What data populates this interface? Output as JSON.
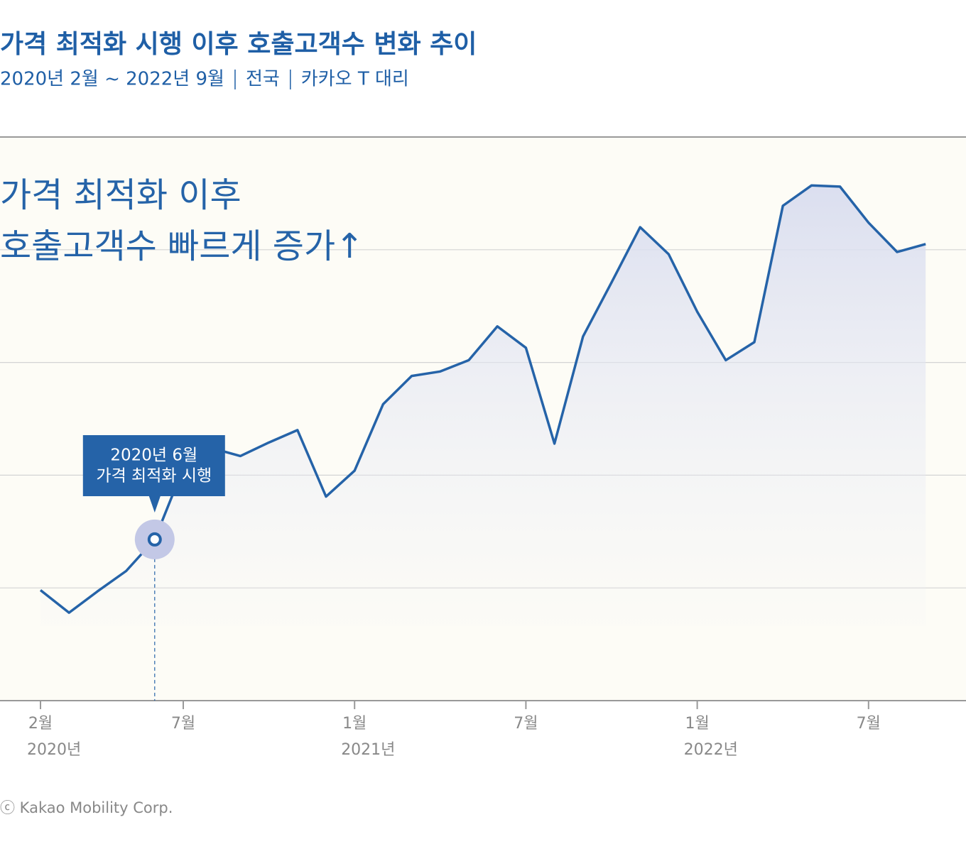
{
  "chart_data": {
    "type": "line",
    "title": "가격 최적화 시행 이후 호출고객수 변화 추이",
    "subtitle": [
      "2020년 2월 ~ 2022년 9월",
      "전국",
      "카카오 T 대리"
    ],
    "headline": [
      "가격 최적화 이후",
      "호출고객수 빠르게 증가↑"
    ],
    "categories": [
      "2월",
      null,
      null,
      null,
      null,
      "7월",
      null,
      null,
      null,
      null,
      null,
      "1월",
      null,
      null,
      null,
      null,
      null,
      "7월",
      null,
      null,
      null,
      null,
      null,
      "1월",
      null,
      null,
      null,
      null,
      null,
      "7월",
      null,
      null
    ],
    "year_labels": [
      "2020년",
      null,
      null,
      null,
      null,
      null,
      null,
      null,
      null,
      null,
      null,
      "2021년",
      null,
      null,
      null,
      null,
      null,
      null,
      null,
      null,
      null,
      null,
      null,
      "2022년",
      null,
      null,
      null,
      null,
      null,
      null,
      null,
      null
    ],
    "series": [
      {
        "color": "#2563a8",
        "values": [
          0.98,
          0.78,
          0.97,
          1.15,
          1.43,
          2.06,
          2.24,
          2.17,
          2.29,
          2.4,
          1.81,
          2.04,
          2.63,
          2.88,
          2.92,
          3.02,
          3.32,
          3.13,
          2.28,
          3.23,
          3.71,
          4.2,
          3.96,
          3.45,
          3.02,
          3.18,
          4.39,
          4.57,
          4.56,
          4.24,
          3.98,
          4.05
        ]
      }
    ],
    "ylim": [
      0,
      5
    ],
    "yticks": [
      0,
      1,
      2,
      3,
      4,
      5
    ],
    "grid": true,
    "annotation": {
      "index": 4,
      "lines": [
        "2020년 6월",
        "가격 최적화 시행"
      ]
    },
    "footer": "ⓒ Kakao Mobility Corp."
  }
}
